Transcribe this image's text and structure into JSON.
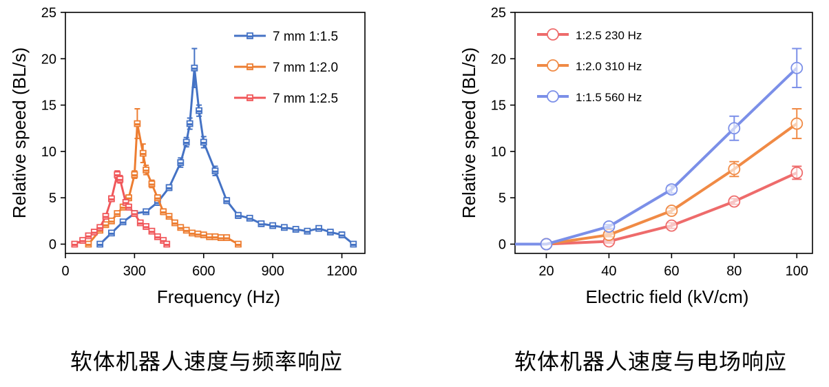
{
  "colors": {
    "blue": "#4472C4",
    "orange": "#ED7D31",
    "red": "#F0575A",
    "blue_light": "#7B8FE8",
    "orange_light": "#F08A45",
    "red_light": "#EE6B6B"
  },
  "captions": {
    "left": "软体机器人速度与频率响应",
    "right": "软体机器人速度与电场响应"
  },
  "chart_data": [
    {
      "type": "line",
      "title": "",
      "xlabel": "Frequency (Hz)",
      "ylabel": "Relative speed (BL/s)",
      "xlim": [
        0,
        1300
      ],
      "ylim": [
        -1,
        25
      ],
      "xticks": [
        0,
        300,
        600,
        900,
        1200
      ],
      "yticks": [
        0,
        5,
        10,
        15,
        20,
        25
      ],
      "legend_position": "top-right",
      "series": [
        {
          "name": "7 mm 1:1.5",
          "color": "#4472C4",
          "marker": "square",
          "x": [
            150,
            200,
            250,
            300,
            350,
            400,
            450,
            500,
            525,
            540,
            560,
            580,
            600,
            650,
            700,
            750,
            800,
            850,
            900,
            950,
            1000,
            1050,
            1100,
            1150,
            1200,
            1250
          ],
          "y": [
            0,
            1.2,
            2.4,
            3.3,
            3.5,
            4.5,
            6.1,
            8.8,
            11.0,
            13.0,
            19.0,
            14.4,
            11.0,
            7.9,
            4.7,
            3.1,
            2.8,
            2.2,
            2.0,
            1.8,
            1.6,
            1.4,
            1.7,
            1.3,
            1.0,
            0
          ],
          "err": [
            0,
            0.2,
            0.2,
            0.2,
            0.2,
            0.3,
            0.3,
            0.5,
            0.5,
            0.6,
            2.1,
            0.6,
            0.6,
            0.5,
            0.3,
            0.3,
            0.2,
            0.2,
            0.2,
            0.2,
            0.2,
            0.2,
            0.2,
            0.2,
            0.3,
            0
          ]
        },
        {
          "name": "7 mm 1:2.0",
          "color": "#ED7D31",
          "marker": "square",
          "x": [
            100,
            150,
            175,
            200,
            225,
            250,
            275,
            300,
            312,
            337,
            350,
            375,
            400,
            425,
            450,
            475,
            500,
            525,
            550,
            575,
            600,
            625,
            650,
            675,
            700,
            750
          ],
          "y": [
            0,
            1.5,
            2.1,
            2.5,
            3.3,
            4.0,
            5.0,
            7.5,
            13.0,
            9.8,
            8.0,
            6.5,
            5.0,
            3.5,
            3.0,
            2.3,
            1.8,
            1.5,
            1.2,
            1.1,
            1.0,
            0.8,
            0.8,
            0.7,
            0.7,
            0
          ],
          "err": [
            0,
            0.2,
            0.2,
            0.2,
            0.2,
            0.3,
            0.3,
            0.4,
            1.6,
            1.0,
            0.5,
            0.4,
            0.3,
            0.3,
            0.2,
            0.2,
            0.2,
            0.2,
            0.2,
            0.2,
            0.2,
            0.2,
            0.2,
            0.2,
            0.2,
            0
          ]
        },
        {
          "name": "7 mm 1:2.5",
          "color": "#F0575A",
          "marker": "square",
          "x": [
            40,
            75,
            100,
            125,
            150,
            175,
            200,
            225,
            237,
            262,
            275,
            300,
            325,
            350,
            375,
            400,
            425,
            440
          ],
          "y": [
            0,
            0.4,
            0.9,
            1.3,
            1.8,
            3.0,
            4.9,
            7.5,
            7.0,
            4.5,
            4.0,
            3.3,
            2.3,
            1.9,
            1.4,
            0.8,
            0.4,
            0
          ],
          "err": [
            0,
            0.1,
            0.1,
            0.2,
            0.2,
            0.2,
            0.3,
            0.4,
            0.4,
            0.3,
            0.3,
            0.2,
            0.2,
            0.2,
            0.2,
            0.1,
            0.1,
            0
          ]
        }
      ]
    },
    {
      "type": "line",
      "title": "",
      "xlabel": "Electric field (kV/cm)",
      "ylabel": "Relative speed (BL/s)",
      "xlim": [
        10,
        105
      ],
      "ylim": [
        -1,
        25
      ],
      "xticks": [
        20,
        40,
        60,
        80,
        100
      ],
      "yticks": [
        0,
        5,
        10,
        15,
        20,
        25
      ],
      "legend_position": "top-left",
      "series": [
        {
          "name": "1:2.5  230 Hz",
          "color": "#EE6B6B",
          "marker": "circle",
          "x": [
            10,
            20,
            40,
            60,
            80,
            100
          ],
          "y": [
            0,
            0,
            0.3,
            2.0,
            4.6,
            7.7
          ],
          "err": [
            0,
            0,
            0.2,
            0.3,
            0.3,
            0.7
          ]
        },
        {
          "name": "1:2.0  310 Hz",
          "color": "#F08A45",
          "marker": "circle",
          "x": [
            10,
            20,
            40,
            60,
            80,
            100
          ],
          "y": [
            0,
            0,
            1.0,
            3.6,
            8.1,
            13.0
          ],
          "err": [
            0,
            0,
            0.2,
            0.3,
            0.8,
            1.6
          ]
        },
        {
          "name": "1:1.5  560 Hz",
          "color": "#7B8FE8",
          "marker": "circle",
          "x": [
            10,
            20,
            40,
            60,
            80,
            100
          ],
          "y": [
            0,
            0,
            1.9,
            5.9,
            12.5,
            19.0
          ],
          "err": [
            0,
            0,
            0.2,
            0.4,
            1.3,
            2.1
          ]
        }
      ]
    }
  ]
}
